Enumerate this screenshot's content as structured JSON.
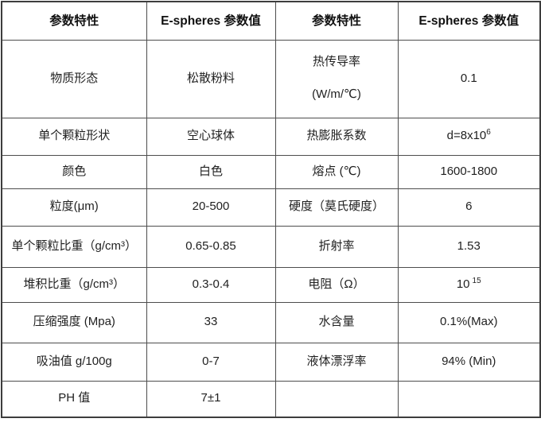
{
  "colors": {
    "border_outer": "#3d3d3d",
    "border_inner": "#4d4d4d",
    "text": "#1f1f1f",
    "background": "#ffffff"
  },
  "table": {
    "header": [
      "参数特性",
      "E-spheres 参数值",
      "参数特性",
      "E-spheres 参数值"
    ],
    "rows": [
      {
        "cells": [
          "物质形态",
          "松散粉料",
          "",
          "0.1"
        ],
        "c2_lines": [
          "热传导率",
          "(W/m/℃)"
        ]
      },
      {
        "cells": [
          "单个颗粒形状",
          "空心球体",
          "热膨胀系数",
          ""
        ],
        "c3_base": "d=8x10",
        "c3_sup": "6"
      },
      {
        "cells": [
          "颜色",
          "白色",
          "熔点 (℃)",
          "1600-1800"
        ]
      },
      {
        "cells": [
          "粒度(μm)",
          "20-500",
          "硬度（莫氏硬度）",
          "6"
        ]
      },
      {
        "cells": [
          "单个颗粒比重（g/cm³）",
          "0.65-0.85",
          "折射率",
          "1.53"
        ]
      },
      {
        "cells": [
          "堆积比重（g/cm³）",
          "0.3-0.4",
          "电阻（Ω）",
          ""
        ],
        "c3_base": "10",
        "c3_sup": "15"
      },
      {
        "cells": [
          "压缩强度 (Mpa)",
          "33",
          "水含量",
          "0.1%(Max)"
        ]
      },
      {
        "cells": [
          "吸油值 g/100g",
          "0-7",
          "液体漂浮率",
          "94% (Min)"
        ]
      },
      {
        "cells": [
          "PH 值",
          "7±1",
          "",
          ""
        ]
      }
    ]
  }
}
